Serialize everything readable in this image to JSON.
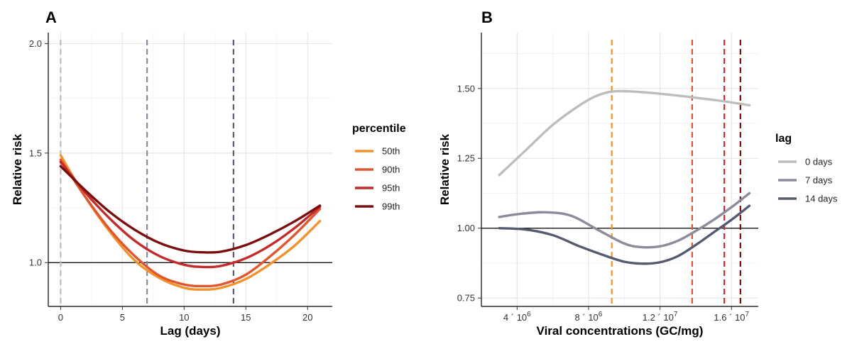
{
  "chart_data": [
    {
      "panel": "A",
      "type": "line",
      "xlabel": "Lag (days)",
      "ylabel": "Relative risk",
      "xlim": [
        -1,
        22
      ],
      "ylim": [
        0.8,
        2.05
      ],
      "x_ticks": [
        0,
        5,
        10,
        15,
        20
      ],
      "x_tick_labels": [
        "0",
        "5",
        "10",
        "15",
        "20"
      ],
      "y_ticks": [
        1.0,
        1.5,
        2.0
      ],
      "y_tick_labels": [
        "1.0",
        "1.5",
        "2.0"
      ],
      "grid": true,
      "reference_line": 1.0,
      "vlines": [
        {
          "x": 0,
          "color": "#bcbcbc"
        },
        {
          "x": 7,
          "color": "#8a8a9a"
        },
        {
          "x": 14,
          "color": "#5a5a70"
        }
      ],
      "legend": {
        "title": "percentile",
        "position": "right"
      },
      "series": [
        {
          "name": "50th",
          "color": "#f0922e",
          "x": [
            0,
            2,
            4,
            6,
            8,
            10,
            11.5,
            13,
            15,
            17,
            19,
            21
          ],
          "y": [
            1.49,
            1.3,
            1.14,
            1.01,
            0.93,
            0.885,
            0.877,
            0.885,
            0.925,
            0.995,
            1.08,
            1.19
          ]
        },
        {
          "name": "90th",
          "color": "#e0572f",
          "x": [
            0,
            2,
            4,
            6,
            8,
            10,
            11.5,
            13,
            15,
            17,
            19,
            21
          ],
          "y": [
            1.47,
            1.3,
            1.15,
            1.03,
            0.94,
            0.9,
            0.893,
            0.9,
            0.945,
            1.03,
            1.13,
            1.245
          ]
        },
        {
          "name": "95th",
          "color": "#c42a2a",
          "x": [
            0,
            2,
            4,
            6,
            8,
            10,
            11.5,
            13,
            15,
            17,
            19,
            21
          ],
          "y": [
            1.46,
            1.32,
            1.2,
            1.1,
            1.03,
            0.99,
            0.98,
            0.985,
            1.02,
            1.08,
            1.16,
            1.255
          ]
        },
        {
          "name": "99th",
          "color": "#7a0e0e",
          "x": [
            0,
            2,
            4,
            6,
            8,
            10,
            11.5,
            13,
            15,
            17,
            19,
            21
          ],
          "y": [
            1.44,
            1.33,
            1.23,
            1.15,
            1.09,
            1.055,
            1.047,
            1.05,
            1.08,
            1.13,
            1.19,
            1.26
          ]
        }
      ]
    },
    {
      "panel": "B",
      "type": "line",
      "xlabel": "Viral concentrations (GC/mg)",
      "ylabel": "Relative risk",
      "xlim": [
        2000000,
        17500000
      ],
      "ylim": [
        0.72,
        1.7
      ],
      "x_ticks": [
        4000000,
        8000000,
        12000000,
        16000000
      ],
      "x_tick_labels": [
        "4 ´ 10",
        "8 ´ 10",
        "1.2 ´ 10",
        "1.6 ´ 10"
      ],
      "x_tick_exponents": [
        "6",
        "6",
        "7",
        "7"
      ],
      "y_ticks": [
        0.75,
        1.0,
        1.25,
        1.5
      ],
      "y_tick_labels": [
        "0.75",
        "1.00",
        "1.25",
        "1.50"
      ],
      "grid": true,
      "reference_line": 1.0,
      "vlines": [
        {
          "x": 9300000,
          "color": "#f0922e"
        },
        {
          "x": 13800000,
          "color": "#e0572f"
        },
        {
          "x": 15600000,
          "color": "#c42a2a"
        },
        {
          "x": 16500000,
          "color": "#7a0e0e"
        }
      ],
      "legend": {
        "title": "lag",
        "position": "right"
      },
      "series": [
        {
          "name": "0 days",
          "color": "#bdbdbd",
          "x": [
            3000000,
            4500000,
            6000000,
            7500000,
            8500000,
            9500000,
            11000000,
            12500000,
            14000000,
            15500000,
            17000000
          ],
          "y": [
            1.19,
            1.28,
            1.37,
            1.44,
            1.475,
            1.49,
            1.487,
            1.478,
            1.467,
            1.455,
            1.44
          ]
        },
        {
          "name": "7 days",
          "color": "#8b8b9b",
          "x": [
            3000000,
            4000000,
            5500000,
            7000000,
            8500000,
            10000000,
            11000000,
            12000000,
            13000000,
            14000000,
            15000000,
            16000000,
            17000000
          ],
          "y": [
            1.04,
            1.05,
            1.057,
            1.045,
            0.995,
            0.945,
            0.932,
            0.935,
            0.955,
            0.99,
            1.03,
            1.075,
            1.125
          ]
        },
        {
          "name": "14 days",
          "color": "#555a6e",
          "x": [
            3000000,
            4500000,
            6000000,
            7500000,
            9000000,
            10000000,
            11000000,
            12000000,
            13000000,
            14000000,
            15000000,
            16000000,
            17000000
          ],
          "y": [
            1.0,
            0.995,
            0.975,
            0.935,
            0.9,
            0.88,
            0.873,
            0.878,
            0.9,
            0.94,
            0.985,
            1.03,
            1.08
          ]
        }
      ]
    }
  ]
}
